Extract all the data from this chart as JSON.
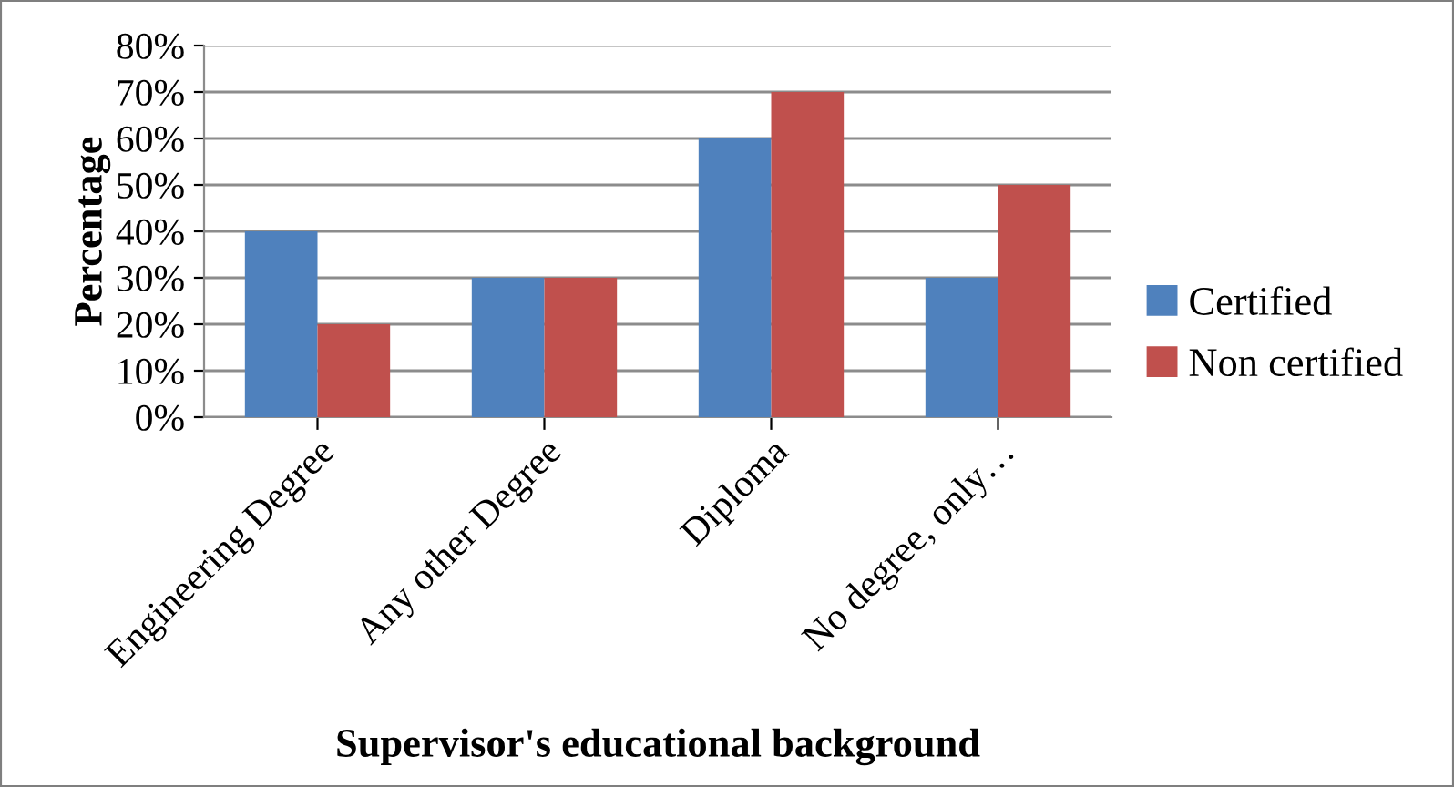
{
  "chart_data": {
    "type": "bar",
    "xlabel": "Supervisor's educational background",
    "ylabel": "Percentage",
    "categories": [
      "Engineering Degree",
      "Any other Degree",
      "Diploma",
      "No degree, only…"
    ],
    "series": [
      {
        "name": "Certified",
        "color": "#4f81bd",
        "values": [
          40,
          30,
          60,
          30
        ]
      },
      {
        "name": "Non certified",
        "color": "#c0504d",
        "values": [
          20,
          30,
          70,
          50
        ]
      }
    ],
    "ylim": [
      0,
      80
    ],
    "yticks": [
      {
        "value": 0,
        "label": "0%"
      },
      {
        "value": 10,
        "label": "10%"
      },
      {
        "value": 20,
        "label": "20%"
      },
      {
        "value": 30,
        "label": "30%"
      },
      {
        "value": 40,
        "label": "40%"
      },
      {
        "value": 50,
        "label": "50%"
      },
      {
        "value": 60,
        "label": "60%"
      },
      {
        "value": 70,
        "label": "70%"
      },
      {
        "value": 80,
        "label": "80%"
      }
    ],
    "grid": "y",
    "legend": "right"
  }
}
